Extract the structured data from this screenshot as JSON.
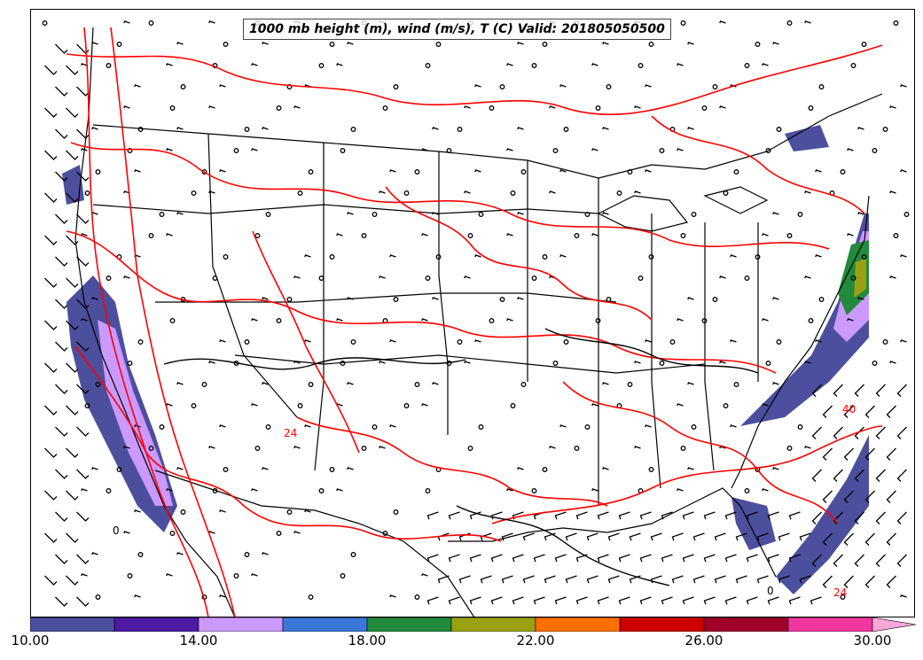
{
  "title": "1000 mb height (m), wind (m/s), T (C) Valid: 201805050500",
  "colorbar": {
    "colors": [
      "#4c4f9d",
      "#4d1aa3",
      "#cc99ff",
      "#3a78d8",
      "#228a3c",
      "#9aa012",
      "#ff7000",
      "#cc0000",
      "#a0002a",
      "#f037a0"
    ],
    "extend_color": "#f8a8d8",
    "tick_labels": [
      "10.00",
      "14.00",
      "18.00",
      "22.00",
      "26.00",
      "30.00"
    ],
    "tick_values": [
      10,
      14,
      18,
      22,
      26,
      30
    ],
    "range": [
      10,
      30
    ]
  },
  "layers": {
    "height_contours_color": "#000000",
    "temperature_contours_color": "#ff0000",
    "wind_barbs_color": "#000000"
  },
  "contour_labels": [
    "0",
    "40",
    "24",
    "0",
    "24"
  ]
}
